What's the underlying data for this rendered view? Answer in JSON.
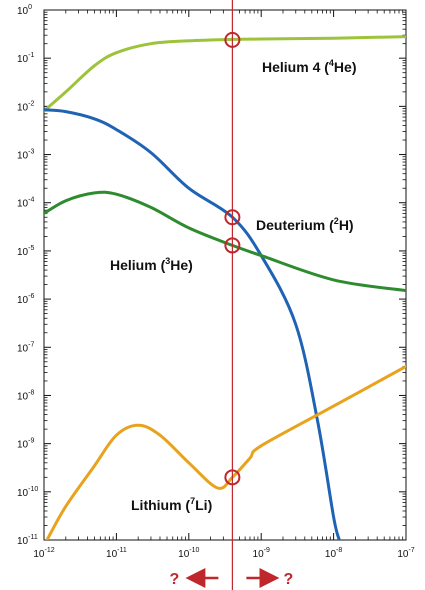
{
  "chart_data": {
    "type": "line",
    "title": "",
    "xlabel": "",
    "ylabel": "",
    "x_scale": "log",
    "y_scale": "log",
    "xlim": [
      1e-12,
      1e-07
    ],
    "ylim": [
      1e-11,
      1
    ],
    "x_ticks": [
      {
        "base": "10",
        "exp": "-12"
      },
      {
        "base": "10",
        "exp": "-11"
      },
      {
        "base": "10",
        "exp": "-10"
      },
      {
        "base": "10",
        "exp": "-9"
      },
      {
        "base": "10",
        "exp": "-8"
      },
      {
        "base": "10",
        "exp": "-7"
      }
    ],
    "y_ticks": [
      {
        "base": "10",
        "exp": "0"
      },
      {
        "base": "10",
        "exp": "-1"
      },
      {
        "base": "10",
        "exp": "-2"
      },
      {
        "base": "10",
        "exp": "-3"
      },
      {
        "base": "10",
        "exp": "-4"
      },
      {
        "base": "10",
        "exp": "-5"
      },
      {
        "base": "10",
        "exp": "-6"
      },
      {
        "base": "10",
        "exp": "-7"
      },
      {
        "base": "10",
        "exp": "-8"
      },
      {
        "base": "10",
        "exp": "-9"
      },
      {
        "base": "10",
        "exp": "-10"
      },
      {
        "base": "10",
        "exp": "-11"
      }
    ],
    "series": [
      {
        "key": "he4",
        "label_main": "Helium 4 (",
        "label_sup": "4",
        "label_end": "He)",
        "color": "#9dc33b",
        "x": [
          1e-12,
          2e-12,
          5e-12,
          1e-11,
          3e-11,
          1e-10,
          4e-10,
          1e-09,
          1e-08,
          1e-07
        ],
        "y": [
          0.008,
          0.02,
          0.07,
          0.13,
          0.2,
          0.23,
          0.245,
          0.25,
          0.26,
          0.28
        ]
      },
      {
        "key": "d",
        "label_main": "Deuterium (",
        "label_sup": "2",
        "label_end": "H)",
        "color": "#1f63b4",
        "x": [
          1e-12,
          2e-12,
          5e-12,
          1e-11,
          3e-11,
          1e-10,
          4e-10,
          1e-09,
          3e-09,
          6e-09,
          1e-08,
          1.2e-08
        ],
        "y": [
          0.0085,
          0.0078,
          0.0055,
          0.0033,
          0.0011,
          0.0002,
          5e-05,
          8e-06,
          3e-07,
          3e-09,
          3e-11,
          1e-11
        ]
      },
      {
        "key": "he3",
        "label_main": "Helium (",
        "label_sup": "3",
        "label_end": "He)",
        "color": "#2f8b2f",
        "x": [
          1e-12,
          2e-12,
          5e-12,
          1e-11,
          3e-11,
          1e-10,
          4e-10,
          1e-09,
          1e-08,
          1e-07
        ],
        "y": [
          6e-05,
          0.00011,
          0.00016,
          0.00015,
          8e-05,
          3e-05,
          1.3e-05,
          8e-06,
          2.5e-06,
          1.5e-06
        ]
      },
      {
        "key": "li7",
        "label_main": "Lithium (",
        "label_sup": "7",
        "label_end": "Li)",
        "color": "#e8a21c",
        "x": [
          1.1e-12,
          2e-12,
          5e-12,
          1e-11,
          2e-11,
          4e-11,
          1e-10,
          2.5e-10,
          4e-10,
          7e-10,
          1e-09,
          1e-08,
          1e-07
        ],
        "y": [
          1e-11,
          5e-11,
          3.5e-10,
          1.5e-09,
          2.4e-09,
          1.5e-09,
          4e-10,
          1.2e-10,
          2e-10,
          5e-10,
          9e-10,
          6e-09,
          4e-08
        ]
      }
    ],
    "marker_line": {
      "x": 4e-10,
      "color": "#c0272d"
    },
    "markers": [
      {
        "series": "he4",
        "x": 4e-10,
        "y": 0.24
      },
      {
        "series": "d",
        "x": 4e-10,
        "y": 5e-05
      },
      {
        "series": "he3",
        "x": 4e-10,
        "y": 1.3e-05
      },
      {
        "series": "li7",
        "x": 4e-10,
        "y": 2e-10
      }
    ],
    "arrows": {
      "left_text": "?",
      "right_text": "?",
      "color": "#c0272d"
    }
  }
}
